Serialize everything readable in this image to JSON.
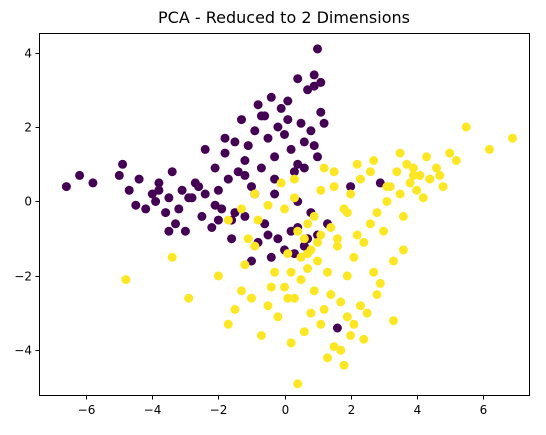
{
  "chart_data": {
    "type": "scatter",
    "title": "PCA - Reduced to 2 Dimensions",
    "xlabel": "",
    "ylabel": "",
    "xlim": [
      -7.4,
      7.4
    ],
    "ylim": [
      -5.2,
      4.5
    ],
    "x_ticks": [
      -6,
      -4,
      -2,
      0,
      2,
      4,
      6
    ],
    "y_ticks": [
      -4,
      -2,
      0,
      2,
      4
    ],
    "x_tick_labels": [
      "−6",
      "−4",
      "−2",
      "0",
      "2",
      "4",
      "6"
    ],
    "y_tick_labels": [
      "−4",
      "−2",
      "0",
      "2",
      "4"
    ],
    "grid": false,
    "legend": "none",
    "marker": "circle",
    "colors": {
      "class_0": "#440154",
      "class_1": "#fde725"
    },
    "series": [
      {
        "color": "#440154",
        "x": [
          -6.6,
          -6.2,
          -5.8,
          -5.0,
          -4.9,
          -4.7,
          -4.5,
          -4.4,
          -4.2,
          -4.0,
          -3.9,
          -3.8,
          -3.6,
          -3.5,
          -3.4,
          -3.3,
          -3.1,
          -3.0,
          -2.8,
          -2.7,
          -2.5,
          -2.4,
          -2.2,
          -2.1,
          -2.0,
          -1.9,
          -1.8,
          -1.7,
          -1.6,
          -1.5,
          -1.4,
          -1.3,
          -1.2,
          -1.1,
          -1.0,
          -0.9,
          -0.8,
          -0.7,
          -0.6,
          -0.5,
          -0.4,
          -0.3,
          -0.2,
          -0.1,
          0.0,
          0.1,
          0.2,
          0.3,
          0.4,
          0.5,
          0.6,
          0.7,
          0.8,
          0.9,
          1.0,
          1.1,
          1.2,
          0.9,
          0.4,
          -0.3,
          -0.9,
          -1.5,
          -2.1,
          -2.6,
          -3.2,
          -3.8,
          -0.6,
          -0.2,
          0.2,
          0.6,
          1.0,
          -1.2,
          -0.8,
          -0.4,
          0.0,
          0.4,
          0.8,
          -1.6,
          -1.0,
          -0.5,
          0.3,
          0.7,
          1.3,
          1.6,
          2.0,
          2.9,
          1.0,
          0.6,
          -2.4,
          -1.8,
          -0.7,
          0.1,
          0.9,
          1.1,
          0.4,
          -0.3,
          -1.2,
          -2.9,
          -3.5,
          -2.0
        ],
        "y": [
          0.4,
          0.7,
          0.5,
          0.7,
          1.0,
          0.3,
          -0.1,
          0.6,
          -0.2,
          0.2,
          0.0,
          0.5,
          -0.3,
          0.1,
          0.8,
          -0.6,
          0.3,
          -0.8,
          0.1,
          0.5,
          -0.4,
          0.2,
          -0.7,
          0.9,
          0.3,
          -0.2,
          1.3,
          0.6,
          -0.5,
          1.6,
          0.8,
          2.2,
          1.1,
          1.5,
          0.4,
          1.9,
          2.6,
          0.9,
          2.3,
          1.7,
          2.8,
          1.2,
          2.0,
          2.5,
          1.8,
          2.7,
          1.4,
          0.8,
          3.3,
          2.1,
          1.6,
          3.0,
          1.9,
          3.4,
          4.1,
          2.4,
          2.1,
          1.5,
          1.0,
          0.6,
          0.2,
          -0.3,
          -0.1,
          0.4,
          -0.2,
          0.3,
          -0.6,
          -1.0,
          -0.8,
          -1.2,
          -0.9,
          -0.4,
          -1.1,
          -1.5,
          -1.3,
          -0.7,
          -0.3,
          -1.0,
          -1.6,
          -0.9,
          -1.4,
          -1.0,
          -0.6,
          -3.4,
          0.4,
          0.5,
          1.2,
          0.9,
          1.4,
          1.7,
          2.3,
          2.2,
          3.1,
          3.2,
          0.0,
          0.2,
          0.7,
          0.1,
          -0.8,
          -0.5
        ],
        "name": ""
      },
      {
        "color": "#fde725",
        "x": [
          -4.8,
          -3.4,
          -2.9,
          -2.0,
          -1.7,
          -1.5,
          -1.3,
          -1.2,
          -1.0,
          -0.9,
          -0.7,
          -0.5,
          -0.3,
          -0.2,
          0.0,
          0.1,
          0.2,
          0.3,
          0.4,
          0.5,
          0.6,
          0.7,
          0.8,
          0.9,
          1.0,
          1.1,
          1.2,
          1.3,
          1.4,
          1.5,
          1.6,
          1.7,
          1.8,
          1.9,
          2.0,
          2.1,
          2.2,
          2.3,
          2.4,
          2.5,
          2.6,
          2.7,
          2.8,
          2.9,
          3.0,
          3.1,
          3.2,
          3.3,
          3.4,
          3.5,
          3.6,
          3.7,
          3.8,
          3.9,
          4.0,
          4.1,
          4.2,
          4.3,
          4.4,
          4.6,
          4.8,
          5.0,
          5.2,
          5.5,
          6.2,
          6.9,
          -1.7,
          -1.3,
          -0.9,
          -0.5,
          -0.1,
          0.3,
          0.7,
          1.1,
          1.5,
          1.9,
          2.3,
          2.7,
          3.1,
          3.5,
          3.9,
          0.4,
          0.9,
          1.2,
          1.6,
          2.0,
          2.2,
          0.5,
          1.0,
          1.4,
          1.8,
          0.2,
          0.8,
          1.3,
          -0.4,
          0.1,
          0.6,
          1.7,
          2.4,
          3.3,
          2.8,
          1.1,
          0.0,
          -0.8,
          -1.1,
          0.3,
          1.5,
          2.6,
          4.7,
          3.6,
          2.1,
          0.7,
          1.9
        ],
        "y": [
          -2.1,
          -1.5,
          -2.6,
          -2.0,
          -3.3,
          -2.9,
          -2.4,
          -1.7,
          -2.6,
          -1.2,
          -3.6,
          -2.8,
          -1.9,
          -3.1,
          -2.3,
          -1.4,
          -3.8,
          -2.6,
          -4.9,
          -2.1,
          -3.5,
          -1.8,
          -3.0,
          -2.4,
          -1.6,
          -3.3,
          -2.9,
          -1.9,
          -2.5,
          -3.9,
          -1.2,
          -2.7,
          -4.4,
          -2.0,
          -3.6,
          -1.5,
          -0.9,
          -2.8,
          -1.1,
          -3.0,
          -0.6,
          -1.9,
          -0.3,
          -2.2,
          -0.8,
          0.0,
          0.4,
          -1.6,
          0.8,
          0.2,
          -0.4,
          1.0,
          0.5,
          0.9,
          0.3,
          0.7,
          0.1,
          1.2,
          0.6,
          0.9,
          0.4,
          1.3,
          1.1,
          2.0,
          1.4,
          1.7,
          -0.5,
          -0.2,
          0.2,
          -0.1,
          0.5,
          0.1,
          -0.6,
          0.3,
          0.8,
          -0.3,
          0.6,
          1.1,
          0.4,
          1.3,
          0.7,
          -0.8,
          -0.4,
          0.9,
          -1.0,
          0.2,
          1.0,
          -1.5,
          -1.1,
          -0.7,
          -0.2,
          -1.9,
          -1.3,
          -4.2,
          -2.3,
          -2.6,
          -1.0,
          -4.0,
          -3.7,
          -3.2,
          -2.5,
          -0.9,
          -0.2,
          -0.5,
          -1.0,
          0.6,
          0.4,
          0.8,
          0.7,
          -1.3,
          -3.3,
          -1.4,
          -3.1
        ],
        "name": ""
      }
    ]
  }
}
